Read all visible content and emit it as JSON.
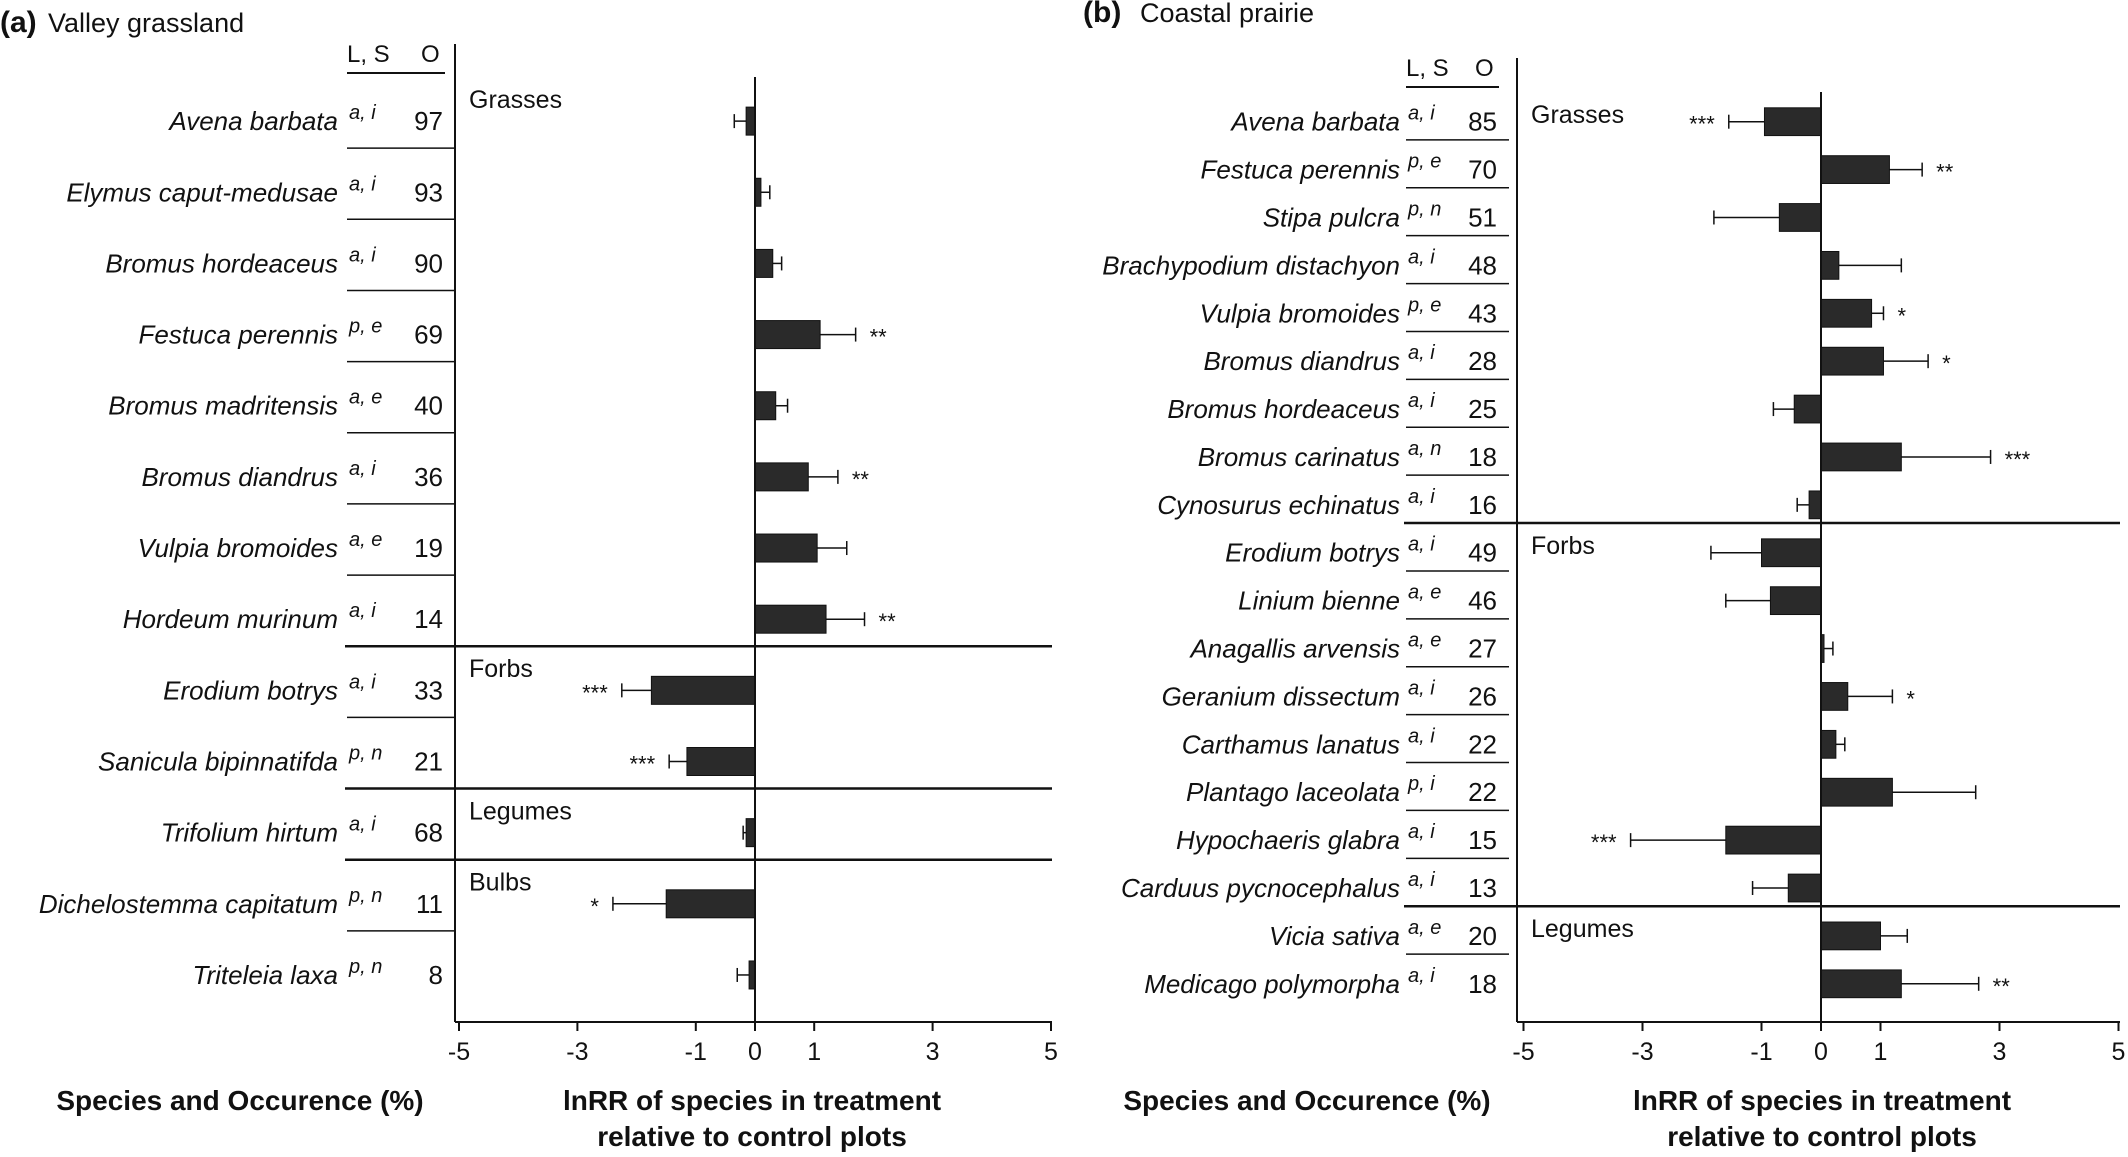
{
  "figure": {
    "axis_title_line1": "lnRR of species in treatment",
    "axis_title_line2": "relative to control plots",
    "left_title": "Species and Occurence (%)"
  },
  "chart_data": [
    {
      "type": "bar",
      "panel_label": "(a)",
      "title": "Valley grassland",
      "column_headers": [
        "L, S",
        "O"
      ],
      "xticks": [
        "-5",
        "-3",
        "-1",
        "0",
        "1",
        "3",
        "5"
      ],
      "xlim": [
        -5,
        5
      ],
      "orientation": "horizontal",
      "groups": [
        {
          "name": "Grasses",
          "species": [
            {
              "name": "Avena barbata",
              "ls": "a, i",
              "occ": 97,
              "value": -0.15,
              "err": 0.2,
              "sig": ""
            },
            {
              "name": "Elymus caput-medusae",
              "ls": "a, i",
              "occ": 93,
              "value": 0.1,
              "err": 0.15,
              "sig": ""
            },
            {
              "name": "Bromus hordeaceus",
              "ls": "a, i",
              "occ": 90,
              "value": 0.3,
              "err": 0.15,
              "sig": ""
            },
            {
              "name": "Festuca perennis",
              "ls": "p, e",
              "occ": 69,
              "value": 1.1,
              "err": 0.6,
              "sig": "**"
            },
            {
              "name": "Bromus madritensis",
              "ls": "a, e",
              "occ": 40,
              "value": 0.35,
              "err": 0.2,
              "sig": ""
            },
            {
              "name": "Bromus diandrus",
              "ls": "a, i",
              "occ": 36,
              "value": 0.9,
              "err": 0.5,
              "sig": "**"
            },
            {
              "name": "Vulpia bromoides",
              "ls": "a, e",
              "occ": 19,
              "value": 1.05,
              "err": 0.5,
              "sig": ""
            },
            {
              "name": "Hordeum murinum",
              "ls": "a, i",
              "occ": 14,
              "value": 1.2,
              "err": 0.65,
              "sig": "**"
            }
          ]
        },
        {
          "name": "Forbs",
          "species": [
            {
              "name": "Erodium botrys",
              "ls": "a, i",
              "occ": 33,
              "value": -1.75,
              "err": 0.5,
              "sig": "***"
            },
            {
              "name": "Sanicula bipinnatifda",
              "ls": "p, n",
              "occ": 21,
              "value": -1.15,
              "err": 0.3,
              "sig": "***"
            }
          ]
        },
        {
          "name": "Legumes",
          "species": [
            {
              "name": "Trifolium hirtum",
              "ls": "a, i",
              "occ": 68,
              "value": -0.15,
              "err": 0.05,
              "sig": ""
            }
          ]
        },
        {
          "name": "Bulbs",
          "species": [
            {
              "name": "Dichelostemma capitatum",
              "ls": "p, n",
              "occ": 11,
              "value": -1.5,
              "err": 0.9,
              "sig": "*"
            },
            {
              "name": "Triteleia laxa",
              "ls": "p, n",
              "occ": 8,
              "value": -0.1,
              "err": 0.2,
              "sig": ""
            }
          ]
        }
      ]
    },
    {
      "type": "bar",
      "panel_label": "(b)",
      "title": "Coastal prairie",
      "column_headers": [
        "L, S",
        "O"
      ],
      "xticks": [
        "-5",
        "-3",
        "-1",
        "0",
        "1",
        "3",
        "5"
      ],
      "xlim": [
        -5,
        5
      ],
      "orientation": "horizontal",
      "groups": [
        {
          "name": "Grasses",
          "species": [
            {
              "name": "Avena barbata",
              "ls": "a, i",
              "occ": 85,
              "value": -0.95,
              "err": 0.6,
              "sig": "***"
            },
            {
              "name": "Festuca perennis",
              "ls": "p, e",
              "occ": 70,
              "value": 1.15,
              "err": 0.55,
              "sig": "**"
            },
            {
              "name": "Stipa pulcra",
              "ls": "p, n",
              "occ": 51,
              "value": -0.7,
              "err": 1.1,
              "sig": ""
            },
            {
              "name": "Brachypodium distachyon",
              "ls": "a, i",
              "occ": 48,
              "value": 0.3,
              "err": 1.05,
              "sig": ""
            },
            {
              "name": "Vulpia bromoides",
              "ls": "p, e",
              "occ": 43,
              "value": 0.85,
              "err": 0.2,
              "sig": "*"
            },
            {
              "name": "Bromus diandrus",
              "ls": "a, i",
              "occ": 28,
              "value": 1.05,
              "err": 0.75,
              "sig": "*"
            },
            {
              "name": "Bromus hordeaceus",
              "ls": "a, i",
              "occ": 25,
              "value": -0.45,
              "err": 0.35,
              "sig": ""
            },
            {
              "name": "Bromus carinatus",
              "ls": "a, n",
              "occ": 18,
              "value": 1.35,
              "err": 1.5,
              "sig": "***"
            },
            {
              "name": "Cynosurus echinatus",
              "ls": "a, i",
              "occ": 16,
              "value": -0.2,
              "err": 0.2,
              "sig": ""
            }
          ]
        },
        {
          "name": "Forbs",
          "species": [
            {
              "name": "Erodium botrys",
              "ls": "a, i",
              "occ": 49,
              "value": -1.0,
              "err": 0.85,
              "sig": ""
            },
            {
              "name": "Linium bienne",
              "ls": "a, e",
              "occ": 46,
              "value": -0.85,
              "err": 0.75,
              "sig": ""
            },
            {
              "name": "Anagallis arvensis",
              "ls": "a, e",
              "occ": 27,
              "value": 0.05,
              "err": 0.15,
              "sig": ""
            },
            {
              "name": "Geranium dissectum",
              "ls": "a, i",
              "occ": 26,
              "value": 0.45,
              "err": 0.75,
              "sig": "*"
            },
            {
              "name": "Carthamus lanatus",
              "ls": "a, i",
              "occ": 22,
              "value": 0.25,
              "err": 0.15,
              "sig": ""
            },
            {
              "name": "Plantago laceolata",
              "ls": "p, i",
              "occ": 22,
              "value": 1.2,
              "err": 1.4,
              "sig": ""
            },
            {
              "name": "Hypochaeris glabra",
              "ls": "a, i",
              "occ": 15,
              "value": -1.6,
              "err": 1.6,
              "sig": "***"
            },
            {
              "name": "Carduus pycnocephalus",
              "ls": "a, i",
              "occ": 13,
              "value": -0.55,
              "err": 0.6,
              "sig": ""
            }
          ]
        },
        {
          "name": "Legumes",
          "species": [
            {
              "name": "Vicia sativa",
              "ls": "a, e",
              "occ": 20,
              "value": 1.0,
              "err": 0.45,
              "sig": ""
            },
            {
              "name": "Medicago polymorpha",
              "ls": "a, i",
              "occ": 18,
              "value": 1.35,
              "err": 1.3,
              "sig": "**"
            }
          ]
        }
      ]
    }
  ]
}
